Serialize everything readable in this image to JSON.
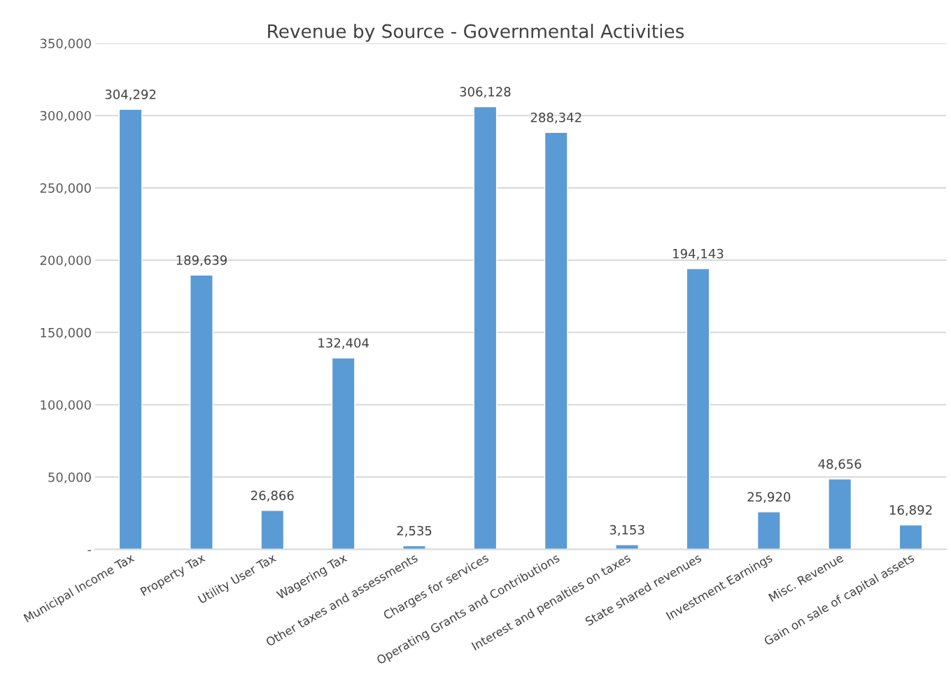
{
  "chart_data": {
    "type": "bar",
    "title": "Revenue by Source - Governmental Activities",
    "categories": [
      "Municipal Income Tax",
      "Property Tax",
      "Utility User Tax",
      "Wagering Tax",
      "Other taxes and assessments",
      "Charges for services",
      "Operating Grants and Contributions",
      "Interest and penalties on taxes",
      "State shared revenues",
      "Investment Earnings",
      "Misc. Revenue",
      "Gain on sale of capital assets"
    ],
    "values": [
      304292,
      189639,
      26866,
      132404,
      2535,
      306128,
      288342,
      3153,
      194143,
      25920,
      48656,
      16892
    ],
    "value_labels": [
      "304,292",
      "189,639",
      "26,866",
      "132,404",
      "2,535",
      "306,128",
      "288,342",
      "3,153",
      "194,143",
      "25,920",
      "48,656",
      "16,892"
    ],
    "color": "#5b9bd5",
    "ylim": [
      0,
      350000
    ],
    "yticks": [
      {
        "value": 0,
        "label": "-"
      },
      {
        "value": 50000,
        "label": "50,000"
      },
      {
        "value": 100000,
        "label": "100,000"
      },
      {
        "value": 150000,
        "label": "150,000"
      },
      {
        "value": 200000,
        "label": "200,000"
      },
      {
        "value": 250000,
        "label": "250,000"
      },
      {
        "value": 300000,
        "label": "300,000"
      },
      {
        "value": 350000,
        "label": "350,000"
      }
    ],
    "grid": "y"
  }
}
